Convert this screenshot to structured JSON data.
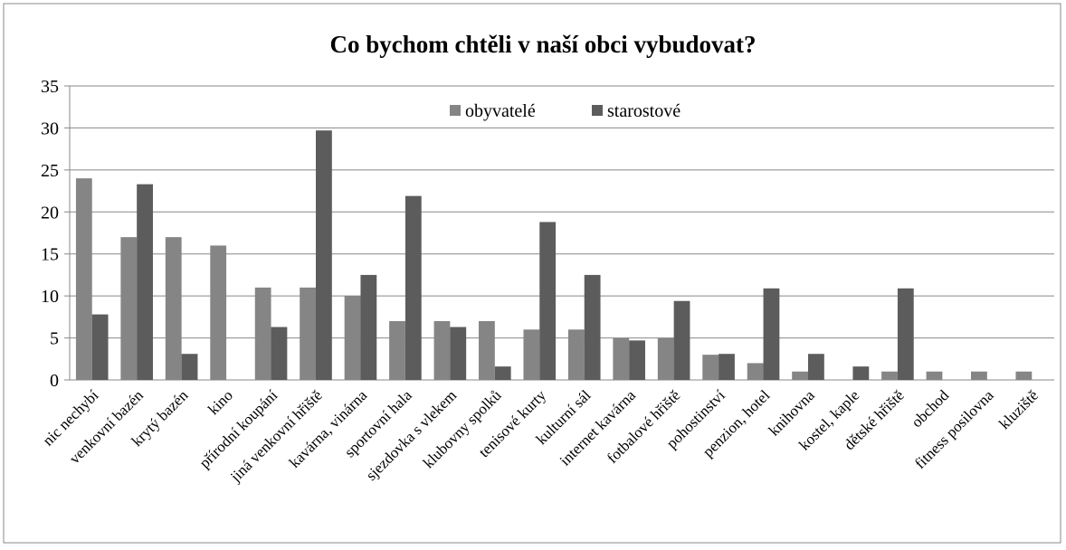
{
  "chart_data": {
    "type": "bar",
    "title": "Co bychom chtěli v naší obci vybudovat?",
    "categories": [
      "nic nechybí",
      "venkovní bazén",
      "krytý bazén",
      "kino",
      "přírodní koupání",
      "jiná venkovní hřiště",
      "kavárna, vinárna",
      "sportovní hala",
      "sjezdovka s vlekem",
      "klubovny spolků",
      "tenisové kurty",
      "kulturní sál",
      "internet kavárna",
      "fotbalové hřiště",
      "pohostinství",
      "penzion, hotel",
      "knihovna",
      "kostel, kaple",
      "dětské hřiště",
      "obchod",
      "fitness posilovna",
      "kluziště"
    ],
    "series": [
      {
        "name": "obyvatelé",
        "color": "#858585",
        "values": [
          24,
          17,
          17,
          16,
          11,
          11,
          10,
          7,
          7,
          7,
          6,
          6,
          5,
          5,
          3,
          2,
          1,
          0,
          1,
          1,
          1,
          1
        ]
      },
      {
        "name": "starostové",
        "color": "#5c5c5c",
        "values": [
          7.8,
          23.3,
          3.1,
          0,
          6.3,
          29.7,
          12.5,
          21.9,
          6.3,
          1.6,
          18.8,
          12.5,
          4.7,
          9.4,
          3.1,
          10.9,
          3.1,
          1.6,
          10.9,
          0,
          0,
          0
        ]
      }
    ],
    "ylim": [
      0,
      35
    ],
    "yticks": [
      0,
      5,
      10,
      15,
      20,
      25,
      30,
      35
    ],
    "grid": true,
    "legend": "top"
  }
}
